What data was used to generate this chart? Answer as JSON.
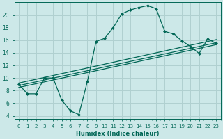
{
  "xlabel": "Humidex (Indice chaleur)",
  "ylabel": "",
  "xlim": [
    -0.5,
    23.5
  ],
  "ylim": [
    3.5,
    22
  ],
  "yticks": [
    4,
    6,
    8,
    10,
    12,
    14,
    16,
    18,
    20
  ],
  "xticks": [
    0,
    1,
    2,
    3,
    4,
    5,
    6,
    7,
    8,
    9,
    10,
    11,
    12,
    13,
    14,
    15,
    16,
    17,
    18,
    19,
    20,
    21,
    22,
    23
  ],
  "bg_color": "#cce8e8",
  "grid_color": "#b0d0d0",
  "line_color": "#006655",
  "wavy_curve": {
    "x": [
      0,
      1,
      2,
      3,
      4,
      5,
      6,
      7,
      8,
      9,
      10,
      11,
      12,
      13,
      14,
      15,
      16,
      17,
      18,
      19,
      20,
      21,
      22,
      23
    ],
    "y": [
      9,
      7.5,
      7.5,
      10,
      10,
      6.5,
      4.8,
      4.2,
      9.5,
      15.8,
      16.3,
      18,
      20.2,
      20.8,
      21.2,
      21.5,
      21,
      17.4,
      17,
      15.9,
      15,
      13.9,
      16.2,
      15.5
    ],
    "marker": "D",
    "markersize": 2.0
  },
  "straight_lines": [
    {
      "x": [
        0,
        23
      ],
      "y": [
        8.5,
        15.3
      ]
    },
    {
      "x": [
        0,
        23
      ],
      "y": [
        8.8,
        15.6
      ]
    },
    {
      "x": [
        0,
        23
      ],
      "y": [
        9.2,
        16.1
      ]
    }
  ]
}
